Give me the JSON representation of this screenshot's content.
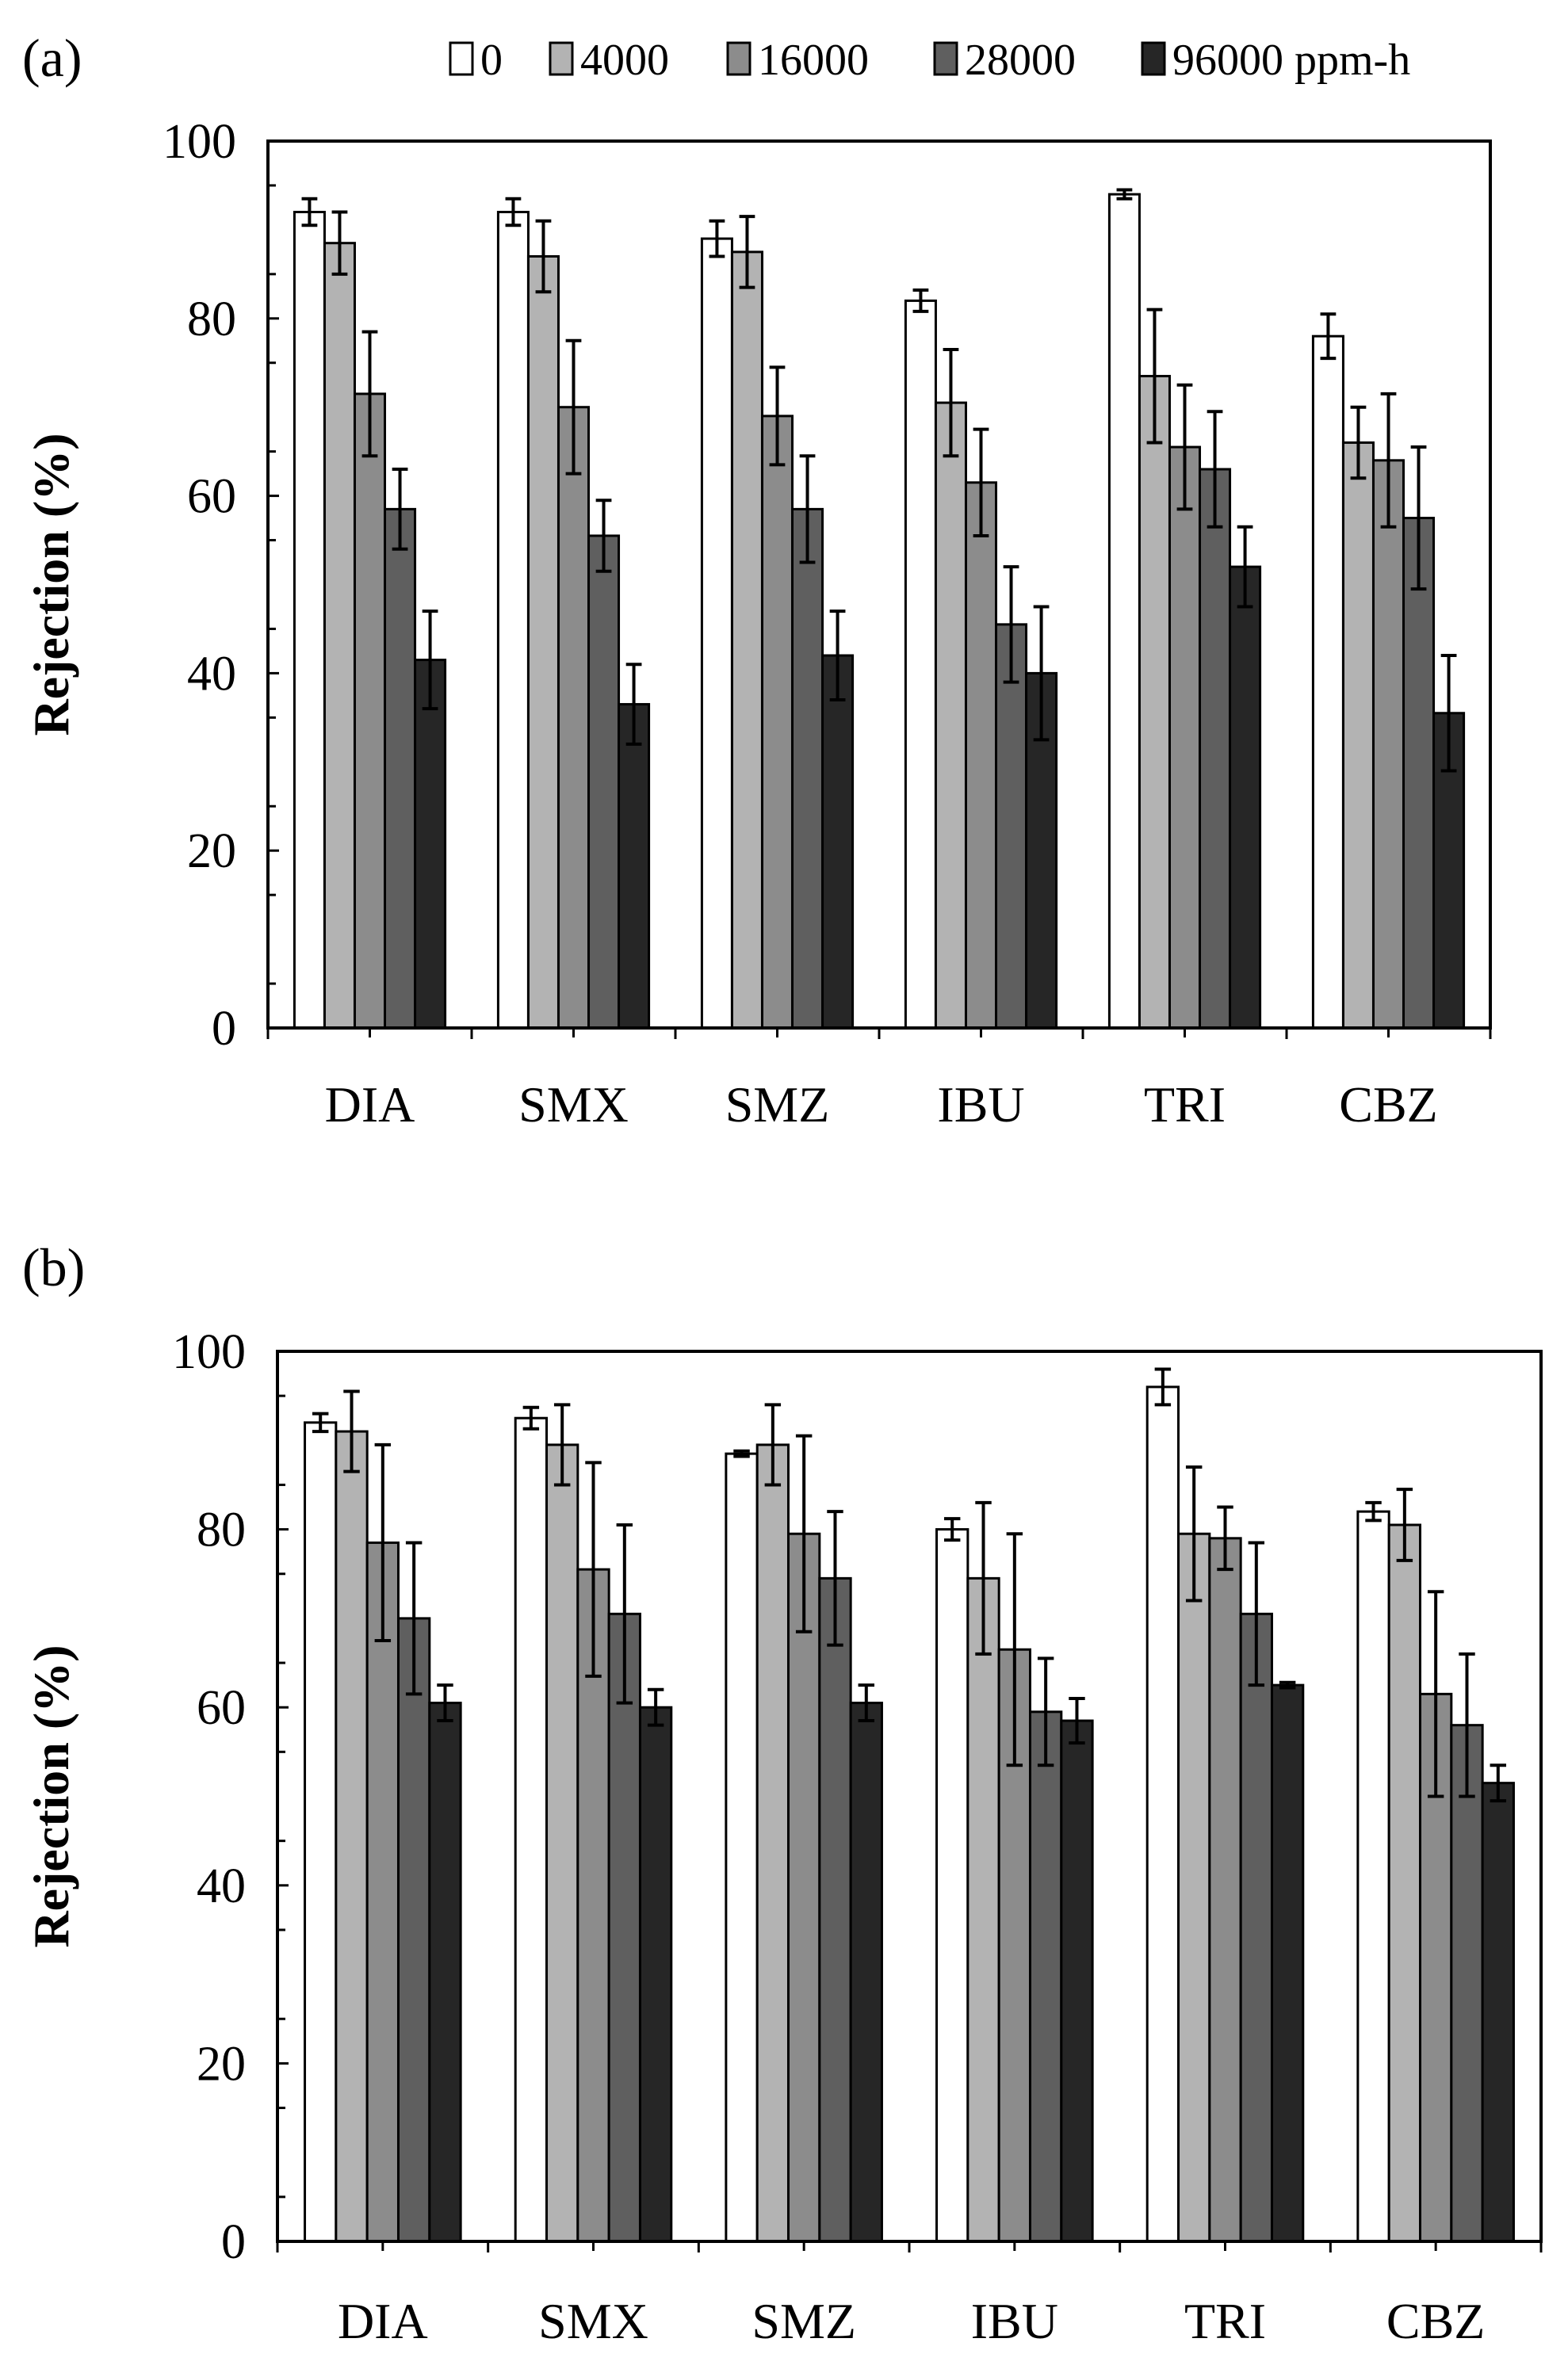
{
  "chart_data": [
    {
      "type": "bar",
      "panel_label": "(a)",
      "ylabel": "Rejection (%)",
      "ylim": [
        0,
        100
      ],
      "yticks": [
        "0",
        "20",
        "40",
        "60",
        "80",
        "100"
      ],
      "categories": [
        "DIA",
        "SMX",
        "SMZ",
        "IBU",
        "TRI",
        "CBZ"
      ],
      "legend_placement": "top-right",
      "series": [
        {
          "name": "0",
          "color": "#ffffff",
          "values": [
            92,
            92,
            89,
            82,
            94,
            78
          ],
          "errors": [
            1.5,
            1.5,
            2,
            1.2,
            0.5,
            2.5
          ]
        },
        {
          "name": "4000",
          "color": "#b3b3b3",
          "values": [
            88.5,
            87,
            87.5,
            70.5,
            73.5,
            66
          ],
          "errors": [
            3.5,
            4,
            4,
            6,
            7.5,
            4
          ]
        },
        {
          "name": "16000",
          "color": "#8c8c8c",
          "values": [
            71.5,
            70,
            69,
            61.5,
            65.5,
            64
          ],
          "errors": [
            7,
            7.5,
            5.5,
            6,
            7,
            7.5
          ]
        },
        {
          "name": "28000",
          "color": "#5f5f5f",
          "values": [
            58.5,
            55.5,
            58.5,
            45.5,
            63,
            57.5
          ],
          "errors": [
            4.5,
            4,
            6,
            6.5,
            6.5,
            8
          ]
        },
        {
          "name": "96000 ppm-h",
          "color": "#262626",
          "values": [
            41.5,
            36.5,
            42,
            40,
            52,
            35.5
          ],
          "errors": [
            5.5,
            4.5,
            5,
            7.5,
            4.5,
            6.5
          ]
        }
      ]
    },
    {
      "type": "bar",
      "panel_label": "(b)",
      "ylabel": "Rejection (%)",
      "ylim": [
        0,
        100
      ],
      "yticks": [
        "0",
        "20",
        "40",
        "60",
        "80",
        "100"
      ],
      "categories": [
        "DIA",
        "SMX",
        "SMZ",
        "IBU",
        "TRI",
        "CBZ"
      ],
      "series": [
        {
          "name": "0",
          "color": "#ffffff",
          "values": [
            92,
            92.5,
            88.5,
            80,
            96,
            82
          ],
          "errors": [
            1,
            1.2,
            0.3,
            1.2,
            2,
            1
          ]
        },
        {
          "name": "4000",
          "color": "#b3b3b3",
          "values": [
            91,
            89.5,
            89.5,
            74.5,
            79.5,
            80.5
          ],
          "errors": [
            4.5,
            4.5,
            4.5,
            8.5,
            7.5,
            4
          ]
        },
        {
          "name": "16000",
          "color": "#8c8c8c",
          "values": [
            78.5,
            75.5,
            79.5,
            66.5,
            79,
            61.5
          ],
          "errors": [
            11,
            12,
            11,
            13,
            3.5,
            11.5
          ]
        },
        {
          "name": "28000",
          "color": "#5f5f5f",
          "values": [
            70,
            70.5,
            74.5,
            59.5,
            70.5,
            58
          ],
          "errors": [
            8.5,
            10,
            7.5,
            6,
            8,
            8
          ]
        },
        {
          "name": "96000 ppm-h",
          "color": "#262626",
          "values": [
            60.5,
            60,
            60.5,
            58.5,
            62.5,
            51.5
          ],
          "errors": [
            2,
            2,
            2,
            2.5,
            0.3,
            2
          ]
        }
      ]
    }
  ]
}
